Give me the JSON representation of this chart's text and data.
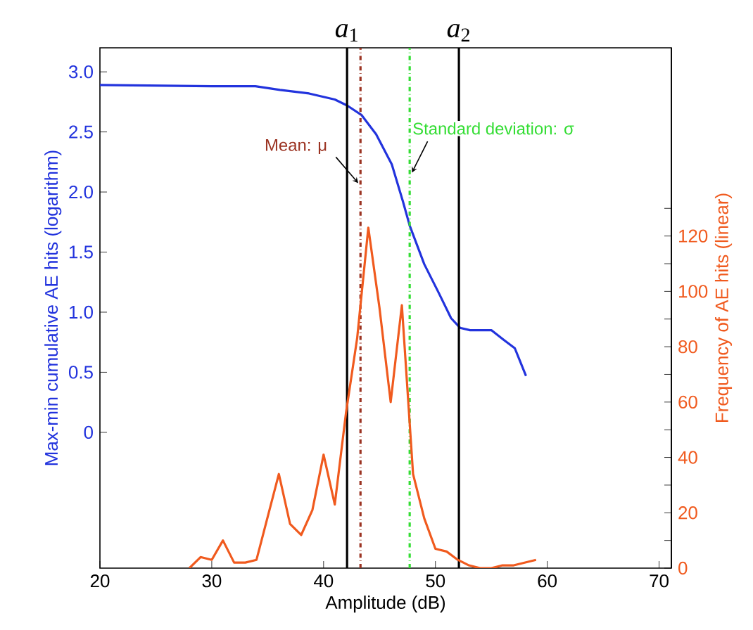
{
  "chart_data": {
    "type": "line",
    "xlabel": "Amplitude (dB)",
    "ylabel": "Max-min cumulative AE hits (logarithm)",
    "y2label": "Frequency of AE hits (linear)",
    "xlim": [
      20,
      71.1
    ],
    "xticks": [
      20,
      30,
      40,
      50,
      60,
      70
    ],
    "ylim": [
      -1.13,
      3.2
    ],
    "yticks": [
      {
        "value": 0,
        "label": "0"
      },
      {
        "value": 0.5,
        "label": "0.5"
      },
      {
        "value": 1,
        "label": "1.0"
      },
      {
        "value": 1.5,
        "label": "1.5"
      },
      {
        "value": 2,
        "label": "2.0"
      },
      {
        "value": 2.5,
        "label": "2.5"
      },
      {
        "value": 3,
        "label": "3.0"
      }
    ],
    "y2lim": [
      0,
      188
    ],
    "y2ticks": [
      0,
      {
        "value": 10,
        "label": null
      },
      20,
      {
        "value": 30,
        "label": null
      },
      40,
      {
        "value": 50,
        "label": null
      },
      60,
      {
        "value": 70,
        "label": null
      },
      80,
      {
        "value": 90,
        "label": null
      },
      100,
      {
        "value": 110,
        "label": null
      },
      120,
      {
        "value": 130,
        "label": null
      }
    ],
    "series": [
      {
        "color": "#2233dd",
        "x": [
          20,
          30,
          33.9,
          36.1,
          38.7,
          41,
          42.1,
          43.4,
          44.7,
          46.1,
          47.1,
          47.7,
          49,
          50.3,
          51.4,
          52.2,
          53.1,
          55,
          56.1,
          57.1,
          58.1
        ],
        "values": [
          2.89,
          2.88,
          2.88,
          2.85,
          2.82,
          2.77,
          2.72,
          2.64,
          2.48,
          2.23,
          1.92,
          1.72,
          1.4,
          1.16,
          0.95,
          0.87,
          0.85,
          0.85,
          0.77,
          0.7,
          0.47
        ]
      },
      {
        "color": "#f05a1e",
        "axis": "y2",
        "x": [
          28,
          29,
          30,
          31,
          32,
          33,
          34,
          36,
          37,
          38,
          39,
          40,
          41,
          42,
          43,
          44,
          45,
          46,
          47,
          48,
          49,
          50,
          51,
          52,
          53,
          54,
          55,
          56,
          57,
          58,
          59
        ],
        "values": [
          0,
          4,
          3,
          10,
          2,
          2,
          3,
          34,
          16,
          12,
          21,
          41,
          23,
          56,
          83,
          123,
          94,
          60,
          95,
          34,
          18,
          7,
          6,
          3,
          1,
          0,
          0,
          1,
          1,
          2,
          3
        ]
      }
    ],
    "ref_lines": [
      {
        "axis": "x",
        "value": 42.1,
        "label": "*a*$_{1}$",
        "color": "#000000",
        "line_style": "solid"
      },
      {
        "axis": "x",
        "value": 43.3,
        "label": "Mean: μ",
        "color": "#9b3322",
        "line_style": "dashdot"
      },
      {
        "axis": "x",
        "value": 47.7,
        "label": "Standard deviation: σ",
        "color": "#33dd33",
        "line_style": "dashdot"
      },
      {
        "axis": "x",
        "value": 52.1,
        "label": "*a*$_{2}$",
        "color": "#000000",
        "line_style": "solid"
      }
    ],
    "grid": false,
    "marker": "none"
  }
}
